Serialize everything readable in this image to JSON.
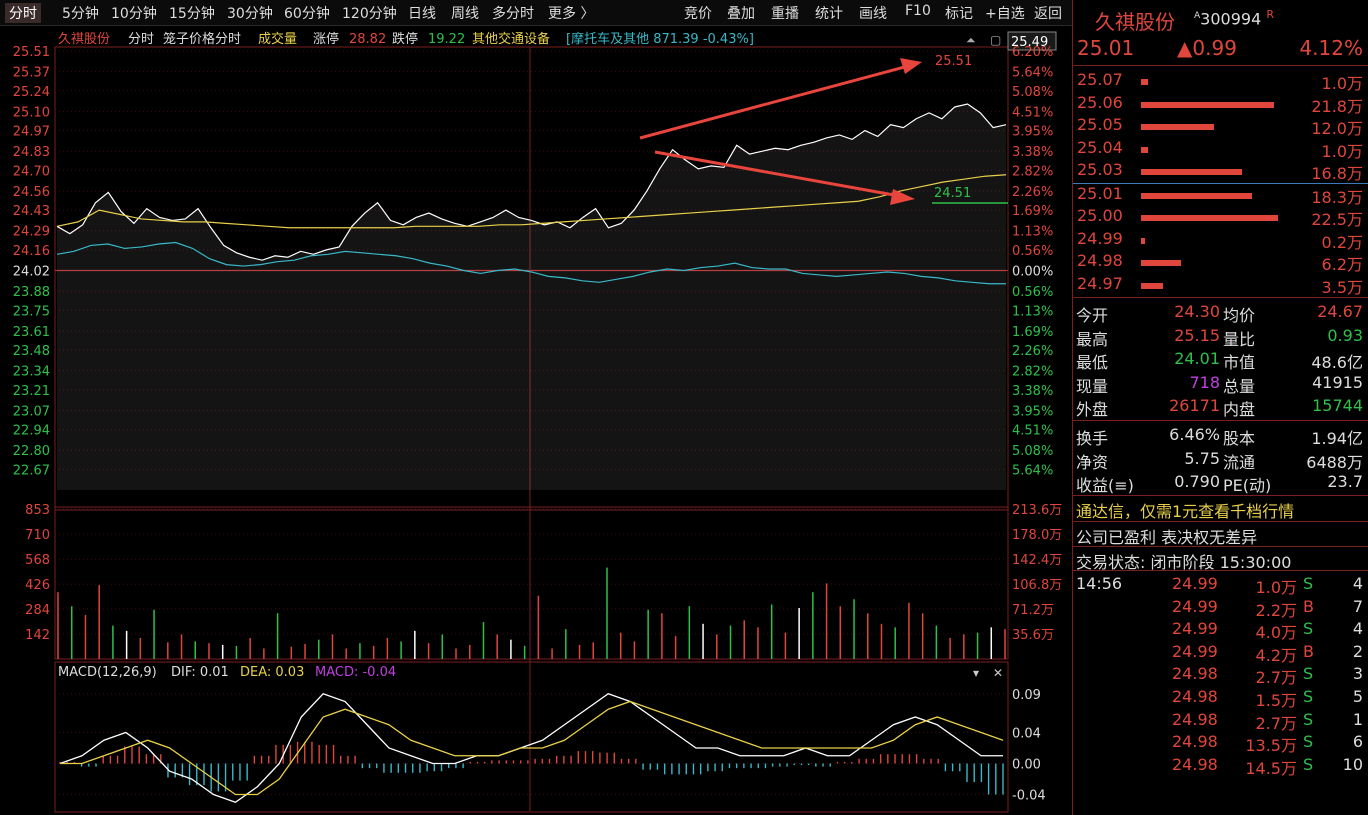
{
  "toolbar": {
    "left_items": [
      "分时",
      "5分钟",
      "10分钟",
      "15分钟",
      "30分钟",
      "60分钟",
      "120分钟",
      "日线",
      "周线",
      "多分时",
      "更多 〉"
    ],
    "right_items": [
      "竞价",
      "叠加",
      "重播",
      "统计",
      "画线",
      "F10",
      "标记",
      "+自选",
      "返回"
    ]
  },
  "chart_header": {
    "name": "久祺股份",
    "mode": "分时",
    "sub": "笼子价格分时",
    "vol": "成交量",
    "limit_up_label": "涨停",
    "limit_up": "28.82",
    "limit_down_label": "跌停",
    "limit_down": "19.22",
    "sector_label": "其他交通设备",
    "index_text": "[摩托车及其他 871.39 -0.43%]",
    "cursor_price": "25.49"
  },
  "annotations": {
    "upper": "25.51",
    "lower": "24.51"
  },
  "macd_header": {
    "label": "MACD(12,26,9)",
    "dif": "DIF: 0.01",
    "dea": "DEA: 0.03",
    "macd": "MACD: -0.04"
  },
  "colors": {
    "up": "#e0463c",
    "down": "#2fc04a",
    "price_line": "#ffffff",
    "avg_line": "#e8d04a",
    "blue_line": "#38b8c8",
    "macd_purple": "#c040e0"
  },
  "chart_data": [
    {
      "type": "line",
      "title": "久祺股份 分时",
      "ylim": [
        22.53,
        25.51
      ],
      "prev_close": 24.02,
      "y_ticks": [
        25.51,
        25.37,
        25.24,
        25.1,
        24.97,
        24.83,
        24.7,
        24.56,
        24.43,
        24.29,
        24.16,
        24.02,
        23.88,
        23.75,
        23.61,
        23.48,
        23.34,
        23.21,
        23.07,
        22.94,
        22.8,
        22.67
      ],
      "pct_ticks": [
        "6.20%",
        "5.64%",
        "5.08%",
        "4.51%",
        "3.95%",
        "3.38%",
        "2.82%",
        "2.26%",
        "1.69%",
        "1.13%",
        "0.56%",
        "0.00%",
        "0.56%",
        "1.13%",
        "1.69%",
        "2.26%",
        "2.82%",
        "3.38%",
        "3.95%",
        "4.51%",
        "5.08%",
        "5.64%"
      ],
      "series": [
        {
          "values": [
            24.32,
            24.27,
            24.33,
            24.48,
            24.55,
            24.42,
            24.34,
            24.44,
            24.38,
            24.36,
            24.37,
            24.44,
            24.31,
            24.19,
            24.14,
            24.11,
            24.09,
            24.12,
            24.11,
            24.15,
            24.13,
            24.16,
            24.18,
            24.32,
            24.41,
            24.48,
            24.36,
            24.33,
            24.38,
            24.41,
            24.37,
            24.34,
            24.32,
            24.35,
            24.38,
            24.43,
            24.38,
            24.36,
            24.33,
            24.35,
            24.31,
            24.38,
            24.44,
            24.31,
            24.34,
            24.43,
            24.56,
            24.71,
            24.84,
            24.77,
            24.71,
            24.73,
            24.72,
            24.87,
            24.81,
            24.83,
            24.85,
            24.84,
            24.87,
            24.89,
            24.92,
            24.94,
            24.91,
            24.97,
            24.93,
            25.01,
            24.99,
            25.05,
            25.09,
            25.05,
            25.13,
            25.15,
            25.09,
            24.99,
            25.01
          ]
        },
        {
          "values": [
            24.32,
            24.35,
            24.43,
            24.4,
            24.37,
            24.36,
            24.35,
            24.35,
            24.34,
            24.33,
            24.32,
            24.31,
            24.31,
            24.31,
            24.31,
            24.31,
            24.31,
            24.32,
            24.32,
            24.32,
            24.32,
            24.33,
            24.33,
            24.34,
            24.35,
            24.36,
            24.37,
            24.38,
            24.39,
            24.4,
            24.41,
            24.42,
            24.43,
            24.44,
            24.45,
            24.46,
            24.47,
            24.48,
            24.49,
            24.52,
            24.56,
            24.59,
            24.62,
            24.64,
            24.66,
            24.67
          ]
        },
        {
          "values": [
            24.13,
            24.15,
            24.19,
            24.2,
            24.17,
            24.18,
            24.2,
            24.21,
            24.17,
            24.1,
            24.06,
            24.05,
            24.06,
            24.08,
            24.09,
            24.12,
            24.13,
            24.15,
            24.14,
            24.13,
            24.12,
            24.1,
            24.07,
            24.05,
            24.02,
            24.0,
            24.02,
            24.03,
            24.01,
            23.98,
            23.97,
            23.95,
            23.94,
            23.96,
            23.98,
            24.01,
            24.03,
            24.02,
            24.04,
            24.05,
            24.07,
            24.04,
            24.03,
            24.03,
            24.0,
            23.99,
            23.98,
            23.99,
            24.0,
            24.01,
            24.0,
            23.98,
            23.97,
            23.95,
            23.94,
            23.93,
            23.93
          ]
        }
      ]
    },
    {
      "type": "bar",
      "title": "成交量",
      "ylim": [
        0,
        853
      ],
      "y_ticks": [
        853,
        710,
        568,
        426,
        284,
        142
      ],
      "right_ticks": [
        "213.6万",
        "178.0万",
        "142.4万",
        "106.8万",
        "71.2万",
        "35.6万"
      ],
      "values": [
        380,
        300,
        250,
        420,
        190,
        160,
        120,
        280,
        95,
        140,
        100,
        90,
        80,
        75,
        120,
        60,
        260,
        70,
        85,
        110,
        140,
        60,
        90,
        75,
        120,
        100,
        160,
        90,
        140,
        60,
        80,
        210,
        140,
        110,
        75,
        360,
        60,
        170,
        80,
        95,
        520,
        150,
        100,
        280,
        260,
        130,
        300,
        200,
        140,
        190,
        220,
        180,
        310,
        150,
        290,
        380,
        430,
        300,
        340,
        260,
        200,
        180,
        320,
        260,
        190,
        120,
        140,
        150,
        180,
        170
      ]
    },
    {
      "type": "line",
      "title": "MACD(12,26,9)",
      "ylim": [
        -0.06,
        0.1
      ],
      "y_ticks": [
        0.09,
        0.04,
        0.0,
        -0.04
      ],
      "series": [
        {
          "name": "DIF",
          "values": [
            0.0,
            0.01,
            0.03,
            0.04,
            0.02,
            -0.01,
            -0.02,
            -0.04,
            -0.05,
            -0.03,
            0.0,
            0.06,
            0.09,
            0.08,
            0.05,
            0.02,
            0.01,
            0.0,
            0.0,
            0.01,
            0.01,
            0.02,
            0.03,
            0.05,
            0.07,
            0.09,
            0.08,
            0.06,
            0.04,
            0.02,
            0.02,
            0.01,
            0.01,
            0.01,
            0.02,
            0.01,
            0.01,
            0.03,
            0.05,
            0.06,
            0.05,
            0.03,
            0.01,
            0.01
          ]
        },
        {
          "name": "DEA",
          "values": [
            0.0,
            0.0,
            0.01,
            0.02,
            0.03,
            0.02,
            0.0,
            -0.02,
            -0.04,
            -0.04,
            -0.02,
            0.02,
            0.06,
            0.07,
            0.06,
            0.05,
            0.03,
            0.02,
            0.01,
            0.01,
            0.01,
            0.02,
            0.02,
            0.03,
            0.05,
            0.07,
            0.08,
            0.07,
            0.06,
            0.05,
            0.04,
            0.03,
            0.02,
            0.02,
            0.02,
            0.02,
            0.02,
            0.02,
            0.03,
            0.05,
            0.06,
            0.05,
            0.04,
            0.03
          ]
        },
        {
          "name": "MACD",
          "values": [
            0.002,
            -0.004,
            0.01,
            0.022,
            0.012,
            -0.018,
            -0.028,
            -0.036,
            -0.022,
            0.01,
            0.024,
            0.028,
            0.024,
            0.01,
            -0.006,
            -0.012,
            -0.012,
            -0.01,
            -0.006,
            0.002,
            0.004,
            0.004,
            0.006,
            0.01,
            0.016,
            0.014,
            0.006,
            -0.008,
            -0.014,
            -0.014,
            -0.01,
            -0.006,
            -0.006,
            -0.004,
            -0.002,
            -0.004,
            0.002,
            0.006,
            0.012,
            0.012,
            0.006,
            -0.01,
            -0.024,
            -0.04
          ]
        }
      ]
    }
  ],
  "side": {
    "name": "久祺股份",
    "code": "300994",
    "sup_a": "A",
    "sup_r": "R",
    "price": "25.01",
    "change": "▲0.99",
    "pct": "4.12%",
    "asks": [
      {
        "p": "25.07",
        "v": "1.0万",
        "bar": 0.05
      },
      {
        "p": "25.06",
        "v": "21.8万",
        "bar": 0.97
      },
      {
        "p": "25.05",
        "v": "12.0万",
        "bar": 0.53
      },
      {
        "p": "25.04",
        "v": "1.0万",
        "bar": 0.05
      },
      {
        "p": "25.03",
        "v": "16.8万",
        "bar": 0.74
      }
    ],
    "bids": [
      {
        "p": "25.01",
        "v": "18.3万",
        "bar": 0.81
      },
      {
        "p": "25.00",
        "v": "22.5万",
        "bar": 1.0
      },
      {
        "p": "24.99",
        "v": "0.2万",
        "bar": 0.03
      },
      {
        "p": "24.98",
        "v": "6.2万",
        "bar": 0.29
      },
      {
        "p": "24.97",
        "v": "3.5万",
        "bar": 0.16
      }
    ],
    "stats1": [
      [
        "今开",
        "24.30",
        "均价",
        "24.67"
      ],
      [
        "最高",
        "25.15",
        "量比",
        "0.93"
      ],
      [
        "最低",
        "24.01",
        "市值",
        "48.6亿"
      ],
      [
        "现量",
        "718",
        "总量",
        "41915"
      ],
      [
        "外盘",
        "26171",
        "内盘",
        "15744"
      ]
    ],
    "stats2": [
      [
        "换手",
        "6.46%",
        "股本",
        "1.94亿"
      ],
      [
        "净资",
        "5.75",
        "流通",
        "6488万"
      ],
      [
        "收益(≡)",
        "0.790",
        "PE(动)",
        "23.7"
      ]
    ],
    "banner1": "通达信，仅需1元查看千档行情",
    "banner2": "公司已盈利 表决权无差异",
    "status": "交易状态: 闭市阶段 15:30:00",
    "trade_time": "14:56",
    "trades": [
      [
        "24.99",
        "1.0万",
        "S",
        "4"
      ],
      [
        "24.99",
        "2.2万",
        "B",
        "7"
      ],
      [
        "24.99",
        "4.0万",
        "S",
        "4"
      ],
      [
        "24.99",
        "4.2万",
        "B",
        "2"
      ],
      [
        "24.98",
        "2.7万",
        "S",
        "3"
      ],
      [
        "24.98",
        "1.5万",
        "S",
        "5"
      ],
      [
        "24.98",
        "2.7万",
        "S",
        "1"
      ],
      [
        "24.98",
        "13.5万",
        "S",
        "6"
      ],
      [
        "24.98",
        "14.5万",
        "S",
        "10"
      ]
    ]
  }
}
